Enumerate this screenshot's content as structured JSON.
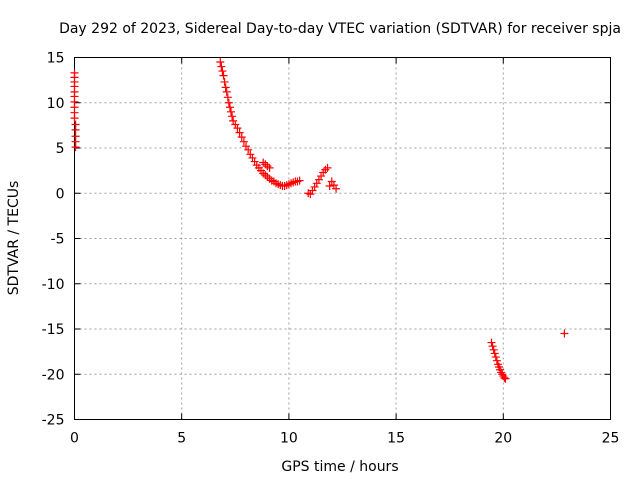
{
  "chart_data": {
    "type": "scatter",
    "title": "Day 292 of 2023, Sidereal Day-to-day VTEC variation (SDTVAR) for receiver spja",
    "xlabel": "GPS time / hours",
    "ylabel": "SDTVAR / TECUs",
    "xlim": [
      0,
      25
    ],
    "ylim": [
      -25,
      15
    ],
    "xticks": [
      0,
      5,
      10,
      15,
      20,
      25
    ],
    "yticks": [
      -25,
      -20,
      -15,
      -10,
      -5,
      0,
      5,
      10,
      15
    ],
    "grid": true,
    "marker": "plus",
    "series_color": "#ff0000",
    "series": [
      {
        "name": "SDTVAR",
        "x": [
          0.0,
          0.0,
          0.0,
          0.0,
          0.0,
          0.0,
          0.0,
          0.0,
          0.0,
          0.0,
          0.05,
          0.05,
          0.05,
          0.05,
          0.05,
          6.8,
          6.85,
          6.9,
          6.95,
          7.0,
          7.05,
          7.1,
          7.15,
          7.2,
          7.25,
          7.3,
          7.35,
          7.4,
          7.5,
          7.6,
          7.7,
          7.8,
          7.9,
          8.0,
          8.1,
          8.2,
          8.3,
          8.4,
          8.5,
          8.6,
          8.7,
          8.8,
          8.9,
          9.0,
          9.1,
          9.2,
          9.3,
          9.4,
          9.5,
          9.6,
          9.7,
          9.8,
          9.9,
          10.0,
          10.1,
          10.2,
          10.3,
          10.4,
          10.5,
          8.8,
          8.9,
          9.0,
          9.1,
          10.9,
          11.0,
          11.1,
          11.2,
          11.3,
          11.4,
          11.5,
          11.6,
          11.7,
          11.8,
          11.9,
          12.0,
          12.1,
          12.2,
          19.45,
          19.5,
          19.55,
          19.6,
          19.65,
          19.7,
          19.75,
          19.8,
          19.85,
          19.9,
          19.95,
          20.0,
          20.05,
          20.1,
          22.85
        ],
        "y": [
          13.3,
          12.8,
          12.3,
          11.8,
          11.2,
          10.7,
          10.1,
          9.5,
          8.9,
          8.3,
          7.6,
          7.0,
          6.3,
          5.7,
          5.1,
          14.5,
          14.0,
          13.5,
          13.0,
          12.3,
          11.7,
          11.2,
          10.6,
          10.0,
          9.5,
          9.0,
          8.5,
          8.0,
          7.6,
          7.2,
          6.7,
          6.2,
          5.7,
          5.2,
          4.8,
          4.3,
          3.9,
          3.5,
          3.1,
          2.8,
          2.5,
          2.2,
          2.0,
          1.8,
          1.6,
          1.4,
          1.3,
          1.1,
          1.0,
          0.9,
          0.8,
          0.8,
          0.9,
          1.0,
          1.1,
          1.2,
          1.3,
          1.3,
          1.4,
          3.4,
          3.2,
          3.0,
          2.8,
          0.0,
          -0.1,
          0.3,
          0.7,
          1.1,
          1.5,
          1.9,
          2.3,
          2.6,
          2.8,
          0.8,
          1.3,
          0.9,
          0.5,
          -16.5,
          -16.9,
          -17.3,
          -17.7,
          -18.1,
          -18.5,
          -18.9,
          -19.2,
          -19.5,
          -19.8,
          -20.0,
          -20.2,
          -20.4,
          -20.5,
          -15.5
        ]
      }
    ]
  }
}
